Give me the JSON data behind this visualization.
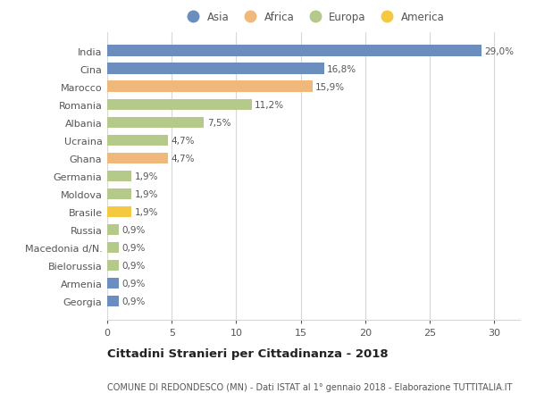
{
  "countries": [
    "India",
    "Cina",
    "Marocco",
    "Romania",
    "Albania",
    "Ucraina",
    "Ghana",
    "Germania",
    "Moldova",
    "Brasile",
    "Russia",
    "Macedonia d/N.",
    "Bielorussia",
    "Armenia",
    "Georgia"
  ],
  "values": [
    29.0,
    16.8,
    15.9,
    11.2,
    7.5,
    4.7,
    4.7,
    1.9,
    1.9,
    1.9,
    0.9,
    0.9,
    0.9,
    0.9,
    0.9
  ],
  "labels": [
    "29,0%",
    "16,8%",
    "15,9%",
    "11,2%",
    "7,5%",
    "4,7%",
    "4,7%",
    "1,9%",
    "1,9%",
    "1,9%",
    "0,9%",
    "0,9%",
    "0,9%",
    "0,9%",
    "0,9%"
  ],
  "continents": [
    "Asia",
    "Asia",
    "Africa",
    "Europa",
    "Europa",
    "Europa",
    "Africa",
    "Europa",
    "Europa",
    "America",
    "Europa",
    "Europa",
    "Europa",
    "Asia",
    "Asia"
  ],
  "colors": {
    "Asia": "#6c8ebf",
    "Africa": "#f0b87b",
    "Europa": "#b5c98a",
    "America": "#f5c842"
  },
  "title": "Cittadini Stranieri per Cittadinanza - 2018",
  "subtitle": "COMUNE DI REDONDESCO (MN) - Dati ISTAT al 1° gennaio 2018 - Elaborazione TUTTITALIA.IT",
  "xlim": [
    0,
    32
  ],
  "xticks": [
    0,
    5,
    10,
    15,
    20,
    25,
    30
  ],
  "background_color": "#ffffff",
  "grid_color": "#d8d8d8",
  "bar_height": 0.62,
  "label_fontsize": 7.5,
  "ytick_fontsize": 8,
  "xtick_fontsize": 8,
  "title_fontsize": 9.5,
  "subtitle_fontsize": 7.0,
  "legend_fontsize": 8.5
}
